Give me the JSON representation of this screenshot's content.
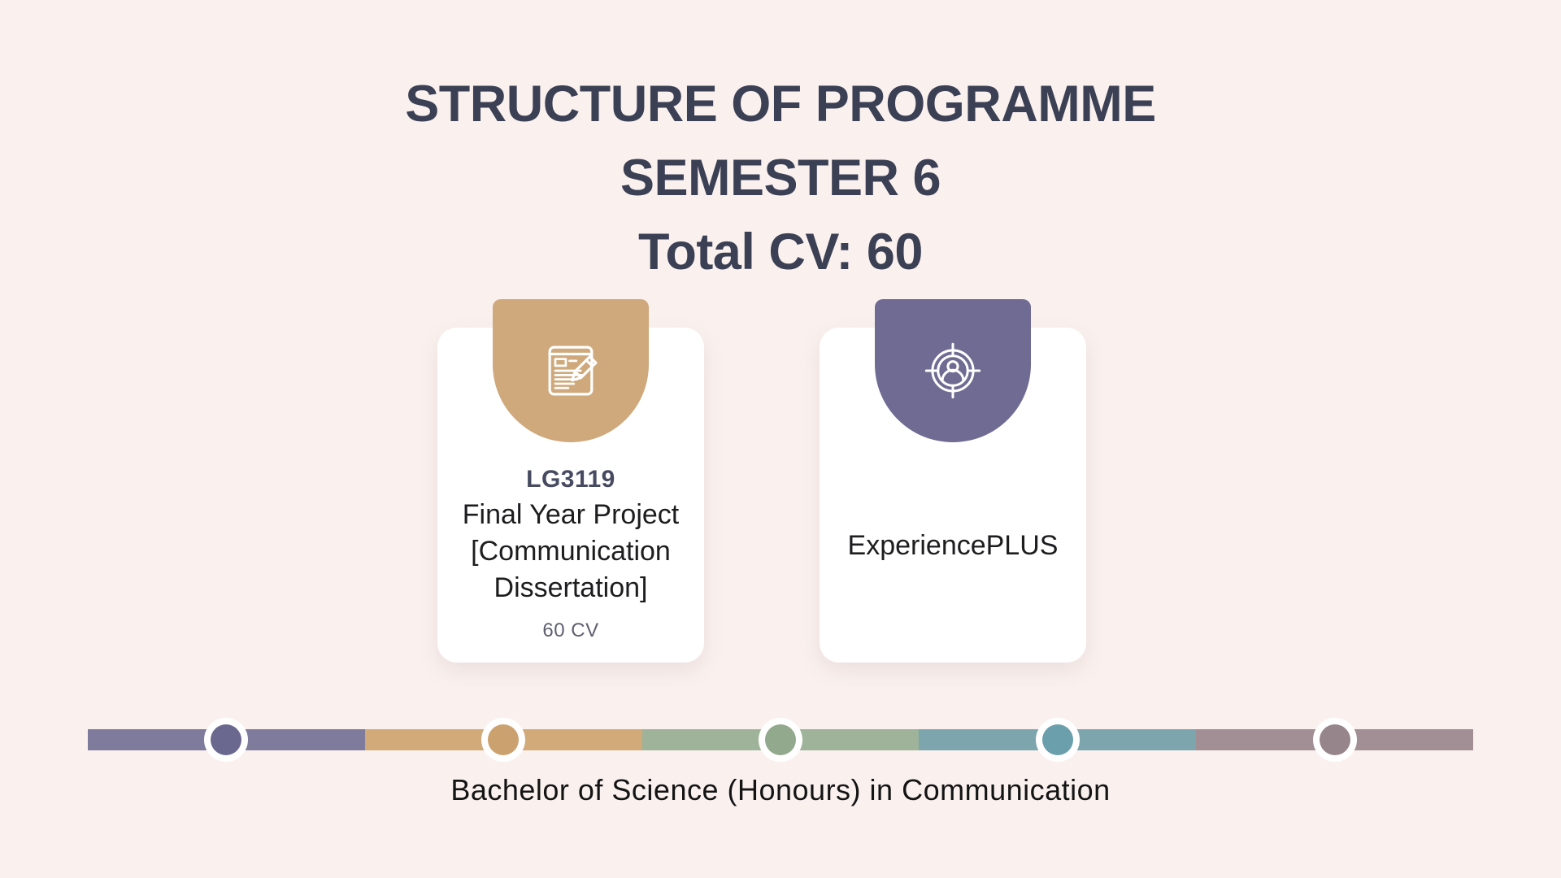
{
  "page": {
    "background": "#faf1ef",
    "heading_color": "#3b4054"
  },
  "header": {
    "line1": "STRUCTURE OF PROGRAMME",
    "line2": "SEMESTER 6",
    "line3": "Total CV: 60"
  },
  "cards": [
    {
      "code": "LG3119",
      "title": "Final Year Project [Communication Dissertation]",
      "credits": "60 CV",
      "badge_color": "#cfa87b",
      "icon": "document-pencil-icon"
    },
    {
      "title": "ExperiencePLUS",
      "badge_color": "#6f6b93",
      "icon": "target-person-icon"
    }
  ],
  "timeline": {
    "label": "Bachelor of Science (Honours) in Communication",
    "segments": [
      {
        "bar": "#7e7b9c",
        "dot": "#6b6890"
      },
      {
        "bar": "#d2a978",
        "dot": "#cba26f"
      },
      {
        "bar": "#9eb399",
        "dot": "#92a98d"
      },
      {
        "bar": "#7ca5ae",
        "dot": "#6b9fab"
      },
      {
        "bar": "#a18f95",
        "dot": "#97858c"
      }
    ]
  }
}
